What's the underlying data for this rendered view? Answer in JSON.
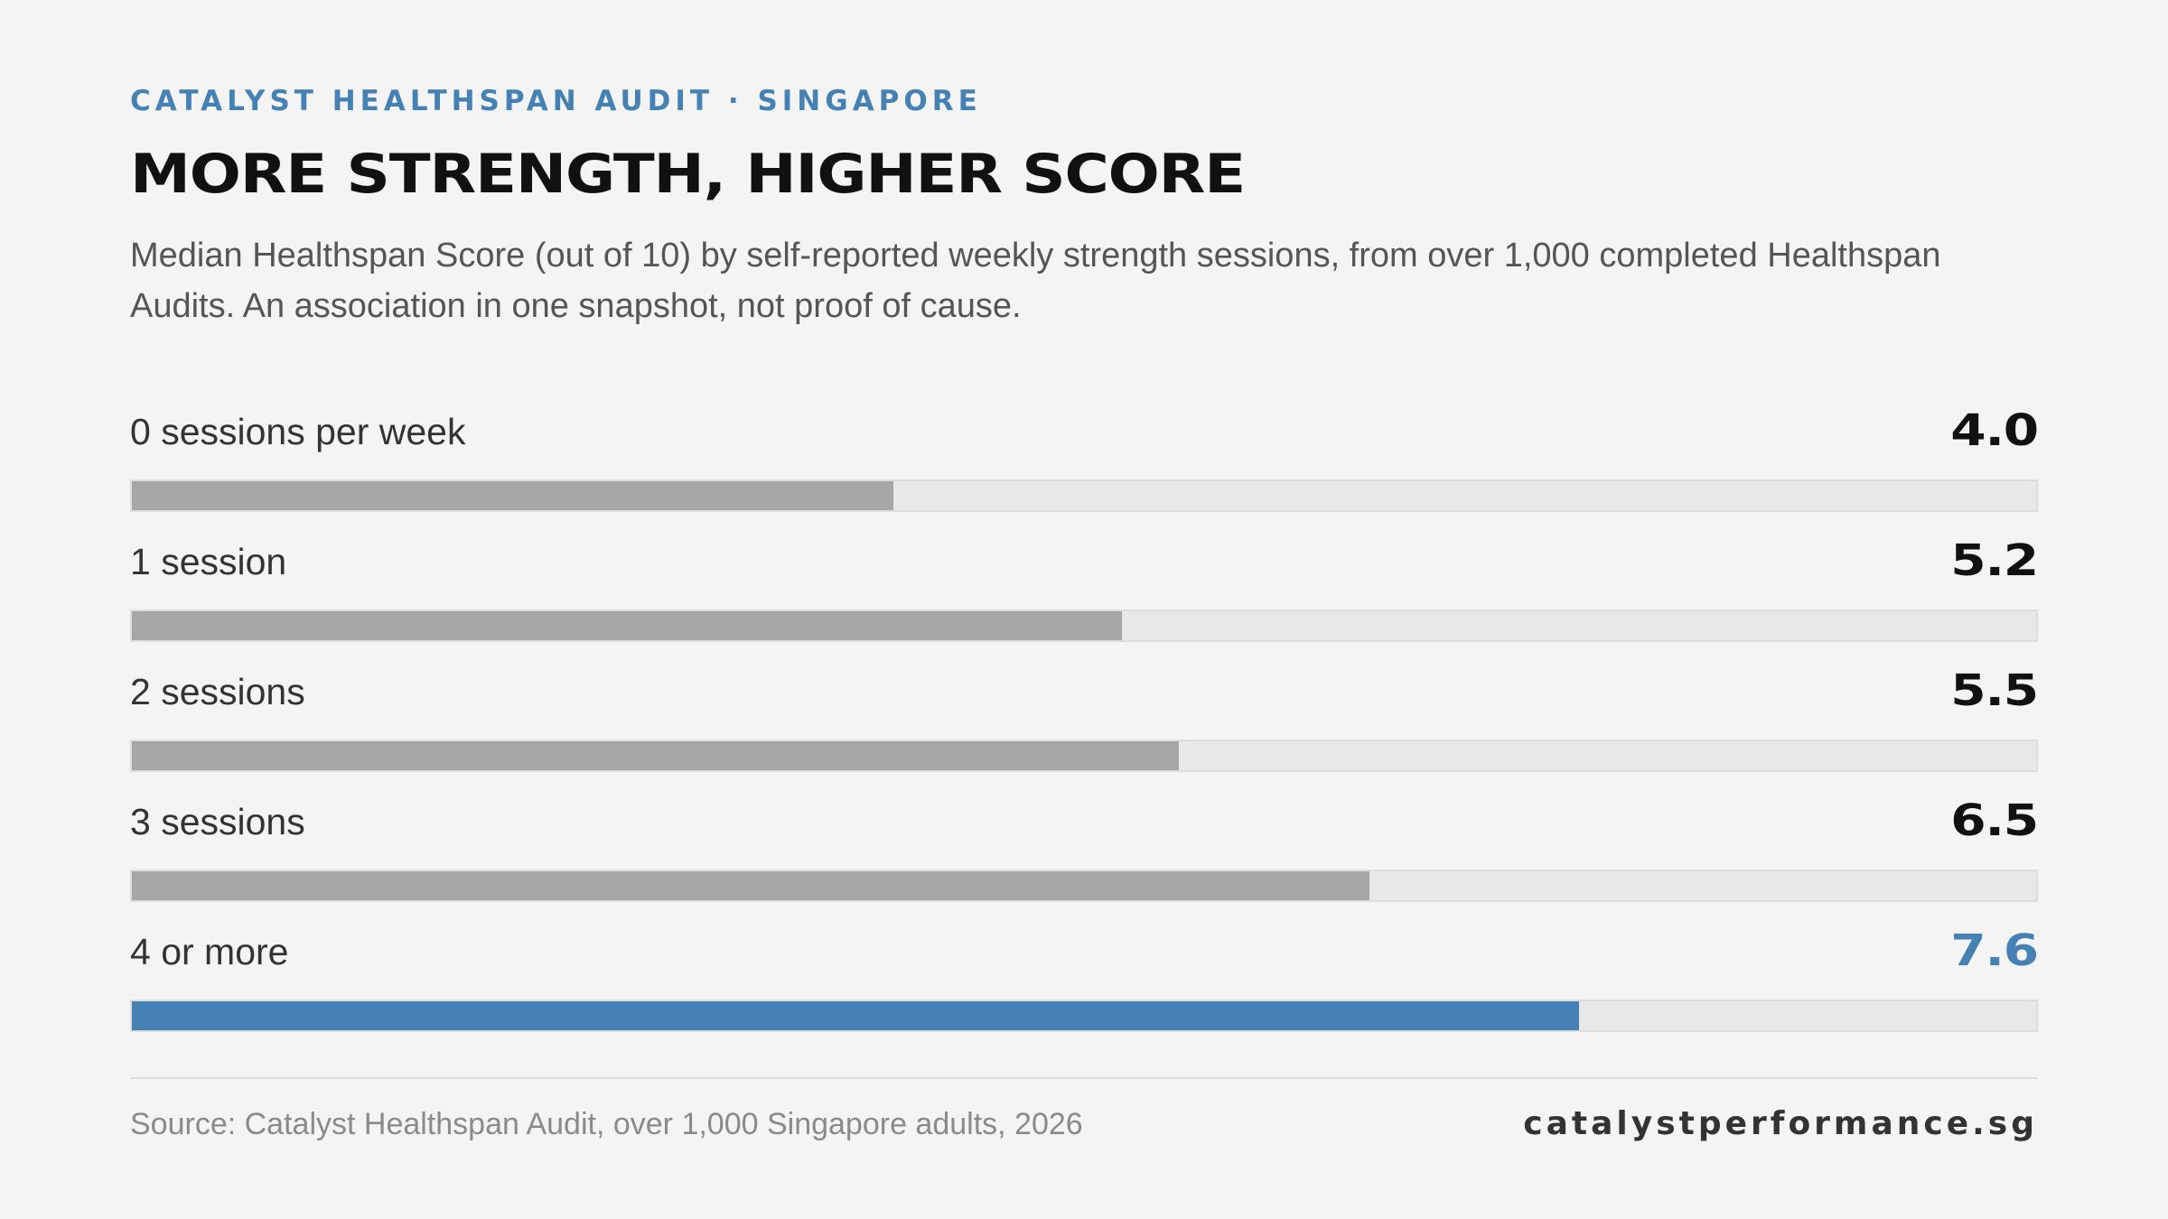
{
  "header": {
    "kicker": "CATALYST HEALTHSPAN AUDIT · SINGAPORE",
    "title": "MORE STRENGTH, HIGHER SCORE",
    "subtitle": "Median Healthspan Score (out of 10) by self-reported weekly strength sessions, from over 1,000 completed Healthspan Audits. An association in one snapshot, not proof of cause."
  },
  "chart_data": {
    "type": "bar",
    "orientation": "horizontal",
    "categories": [
      "0 sessions per week",
      "1 session",
      "2 sessions",
      "3 sessions",
      "4 or more"
    ],
    "values": [
      4.0,
      5.2,
      5.5,
      6.5,
      7.6
    ],
    "value_labels": [
      "4.0",
      "5.2",
      "5.5",
      "6.5",
      "7.6"
    ],
    "xlim": [
      0,
      10
    ],
    "highlight_index": 4,
    "grid": false,
    "legend": "none"
  },
  "colors": {
    "accent": "#4681b4",
    "bar": "#a6a6a6",
    "track": "#e8e8e8",
    "background": "#f4f4f4"
  },
  "footer": {
    "source": "Source: Catalyst Healthspan Audit, over 1,000 Singapore adults, 2026",
    "site": "catalystperformance.sg"
  }
}
